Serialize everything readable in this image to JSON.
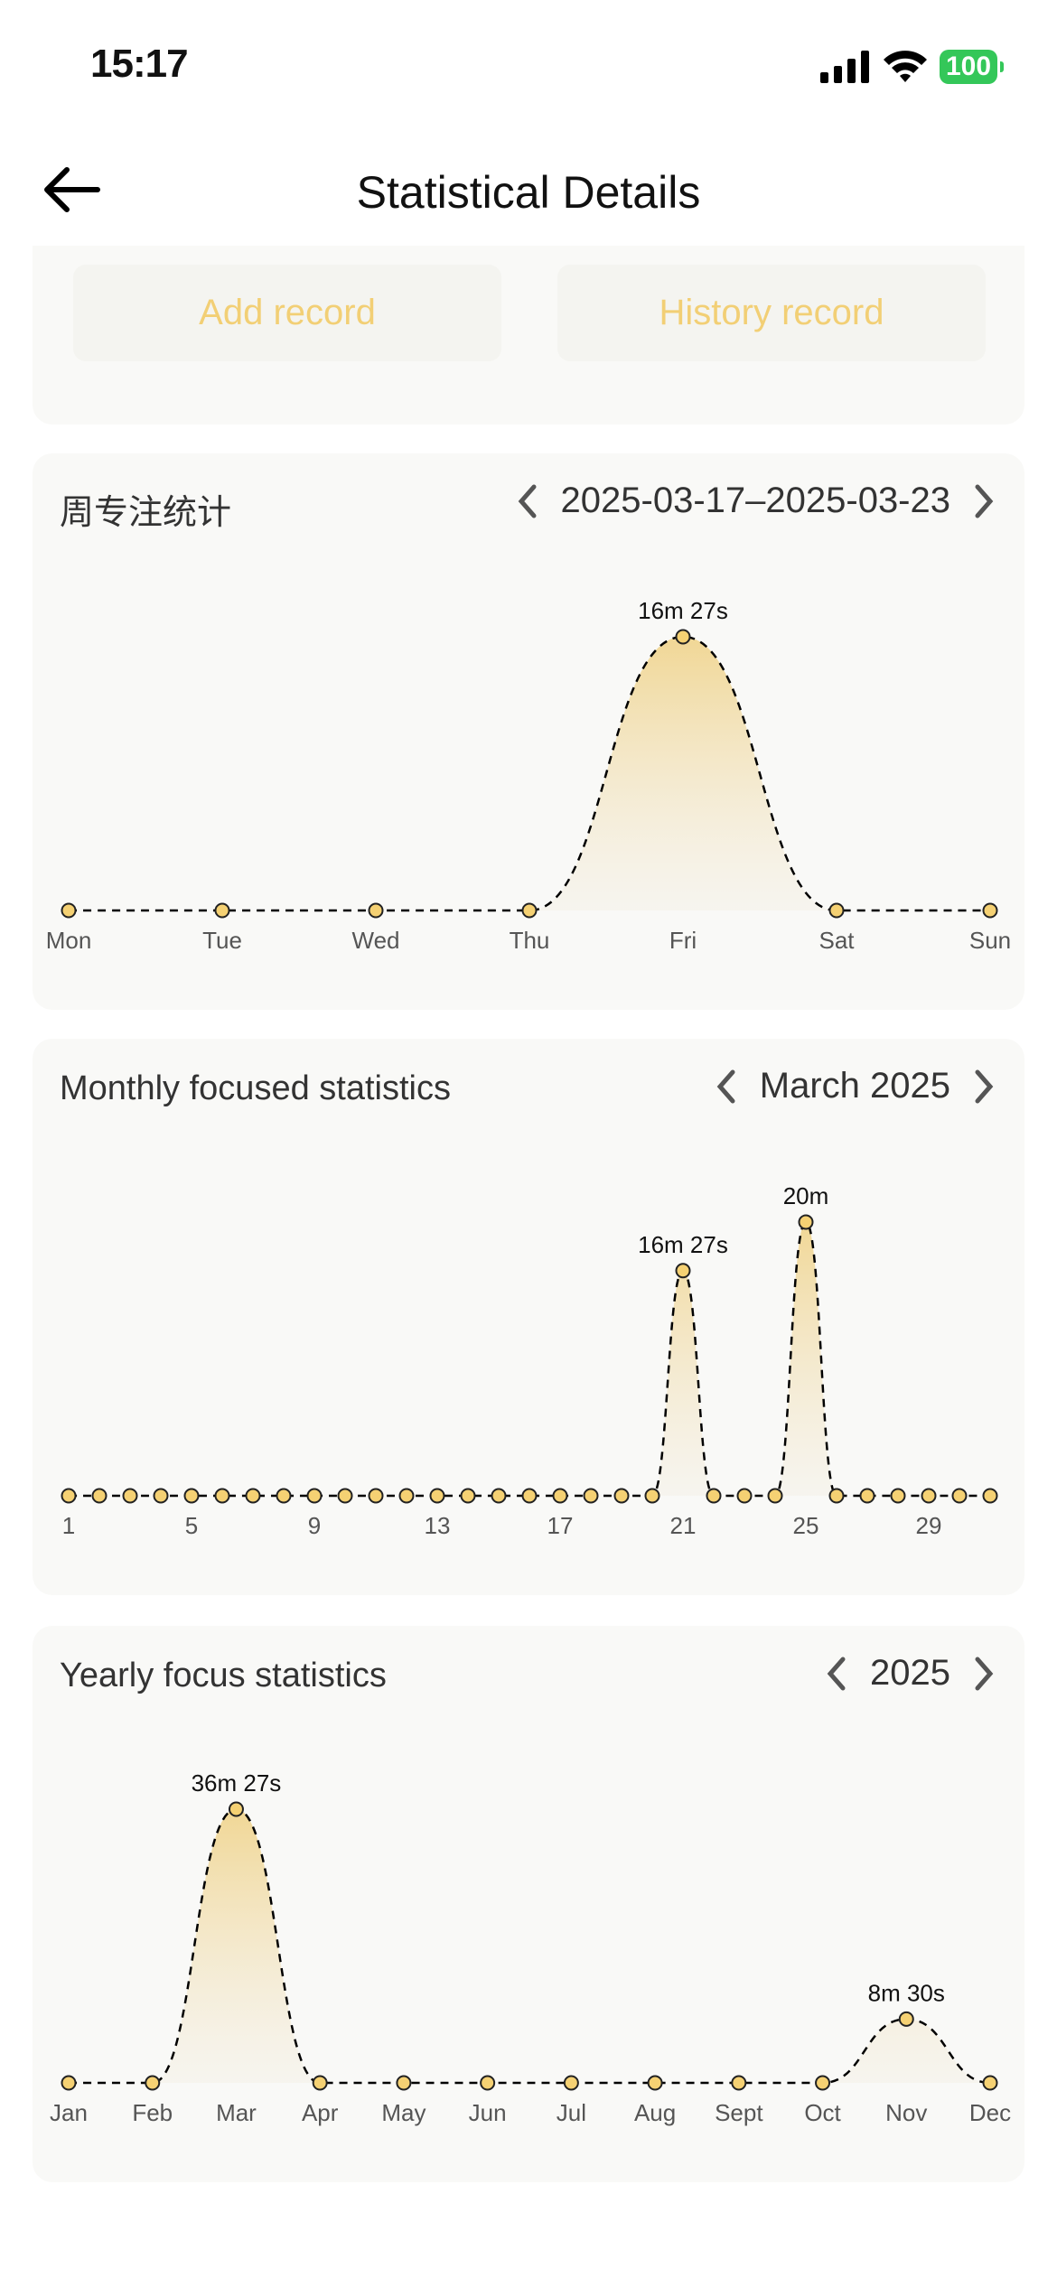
{
  "status_bar": {
    "time": "15:17",
    "battery": "100"
  },
  "header": {
    "title": "Statistical Details",
    "back_icon": "arrow-left-icon"
  },
  "actions": {
    "add_record": "Add record",
    "history_record": "History record"
  },
  "colors": {
    "accent": "#F2CF75",
    "dot": "#F5D173",
    "battery": "#34C759",
    "card": "#F9F9F7"
  },
  "charts": {
    "weekly": {
      "title": "周专注统计",
      "range": "2025-03-17–2025-03-23"
    },
    "monthly": {
      "title": "Monthly focused statistics",
      "range": "March 2025"
    },
    "yearly": {
      "title": "Yearly focus statistics",
      "range": "2025"
    }
  },
  "chart_data": [
    {
      "type": "area",
      "id": "weekly",
      "x": [
        "Mon",
        "Tue",
        "Wed",
        "Thu",
        "Fri",
        "Sat",
        "Sun"
      ],
      "tick_labels": [
        "Mon",
        "Tue",
        "Wed",
        "Thu",
        "Fri",
        "Sat",
        "Sun"
      ],
      "values_seconds": [
        0,
        0,
        0,
        0,
        987,
        0,
        0
      ],
      "data_labels": [
        "",
        "",
        "",
        "",
        "16m 27s",
        "",
        ""
      ],
      "grid": false
    },
    {
      "type": "area",
      "id": "monthly",
      "x": [
        1,
        2,
        3,
        4,
        5,
        6,
        7,
        8,
        9,
        10,
        11,
        12,
        13,
        14,
        15,
        16,
        17,
        18,
        19,
        20,
        21,
        22,
        23,
        24,
        25,
        26,
        27,
        28,
        29,
        30,
        31
      ],
      "tick_labels": [
        "1",
        "",
        "",
        "",
        "5",
        "",
        "",
        "",
        "9",
        "",
        "",
        "",
        "13",
        "",
        "",
        "",
        "17",
        "",
        "",
        "",
        "21",
        "",
        "",
        "",
        "25",
        "",
        "",
        "",
        "29",
        "",
        ""
      ],
      "values_seconds": [
        0,
        0,
        0,
        0,
        0,
        0,
        0,
        0,
        0,
        0,
        0,
        0,
        0,
        0,
        0,
        0,
        0,
        0,
        0,
        0,
        987,
        0,
        0,
        0,
        1200,
        0,
        0,
        0,
        0,
        0,
        0
      ],
      "data_labels": [
        "",
        "",
        "",
        "",
        "",
        "",
        "",
        "",
        "",
        "",
        "",
        "",
        "",
        "",
        "",
        "",
        "",
        "",
        "",
        "",
        "16m 27s",
        "",
        "",
        "",
        "20m",
        "",
        "",
        "",
        "",
        "",
        ""
      ],
      "grid": false
    },
    {
      "type": "area",
      "id": "yearly",
      "x": [
        "Jan",
        "Feb",
        "Mar",
        "Apr",
        "May",
        "Jun",
        "Jul",
        "Aug",
        "Sept",
        "Oct",
        "Nov",
        "Dec"
      ],
      "tick_labels": [
        "Jan",
        "Feb",
        "Mar",
        "Apr",
        "May",
        "Jun",
        "Jul",
        "Aug",
        "Sept",
        "Oct",
        "Nov",
        "Dec"
      ],
      "values_seconds": [
        0,
        0,
        2187,
        0,
        0,
        0,
        0,
        0,
        0,
        0,
        510,
        0
      ],
      "data_labels": [
        "",
        "",
        "36m 27s",
        "",
        "",
        "",
        "",
        "",
        "",
        "",
        "8m 30s",
        ""
      ],
      "grid": false
    }
  ]
}
